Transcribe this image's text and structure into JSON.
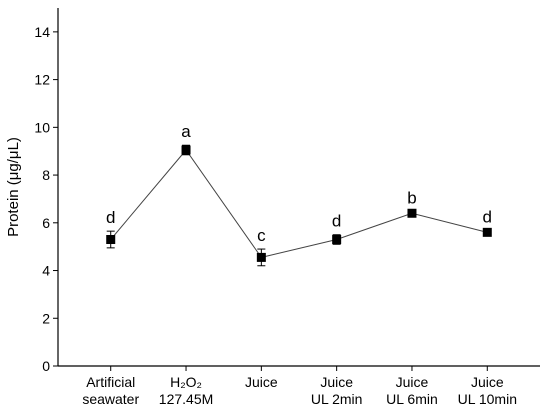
{
  "chart_data": {
    "type": "line",
    "ylabel": "Protein (μg/μL)",
    "ylim": [
      0,
      15
    ],
    "yticks": [
      0,
      2,
      4,
      6,
      8,
      10,
      12,
      14
    ],
    "categories": [
      [
        "Artificial",
        "seawater"
      ],
      [
        "H₂O₂",
        "127.45M"
      ],
      [
        "Juice"
      ],
      [
        "Juice",
        "UL 2min"
      ],
      [
        "Juice",
        "UL 6min"
      ],
      [
        "Juice",
        "UL 10min"
      ]
    ],
    "values": [
      5.3,
      9.05,
      4.55,
      5.3,
      6.4,
      5.6
    ],
    "errors": [
      0.35,
      0.2,
      0.35,
      0.2,
      0.08,
      0.08
    ],
    "significance": [
      "d",
      "a",
      "c",
      "d",
      "b",
      "d"
    ],
    "grid": false,
    "colors": {
      "line": "#444444",
      "marker": "#000000"
    }
  }
}
